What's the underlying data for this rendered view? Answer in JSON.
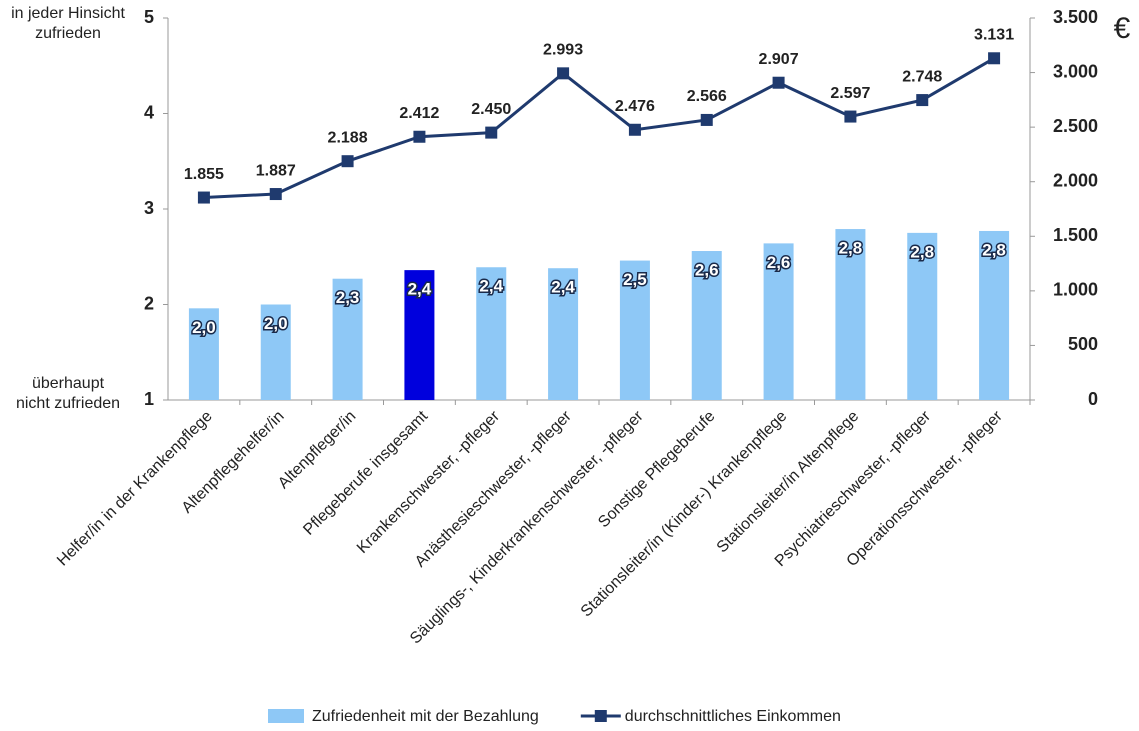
{
  "chart_data": {
    "type": "combo",
    "y_axis_top_label": [
      "in jeder Hinsicht",
      "zufrieden"
    ],
    "y_axis_bottom_label": [
      "überhaupt",
      "nicht zufrieden"
    ],
    "y2_unit": "€",
    "categories": [
      "Helfer/in in der Krankenpflege",
      "Altenpflegehelfer/in",
      "Altenpfleger/in",
      "Pflegeberufe insgesamt",
      "Krankenschwester, -pfleger",
      "Anästhesieschwester, -pfleger",
      "Säuglings-, Kinderkrankenschwester, -pfleger",
      "Sonstige Pflegeberufe",
      "Stationsleiter/in (Kinder-) Krankenpflege",
      "Stationsleiter/in Altenpflege",
      "Psychiatrieschwester, -pfleger",
      "Operationsschwester, -pfleger"
    ],
    "series": [
      {
        "name": "Zufriedenheit mit der Bezahlung",
        "type": "bar",
        "color": "#8ec8f6",
        "colors": [
          "#8ec8f6",
          "#8ec8f6",
          "#8ec8f6",
          "#0000dd",
          "#8ec8f6",
          "#8ec8f6",
          "#8ec8f6",
          "#8ec8f6",
          "#8ec8f6",
          "#8ec8f6",
          "#8ec8f6",
          "#8ec8f6"
        ],
        "values": [
          1.96,
          2.0,
          2.27,
          2.36,
          2.39,
          2.38,
          2.46,
          2.56,
          2.64,
          2.79,
          2.75,
          2.77
        ],
        "value_labels": [
          "2,0",
          "2,0",
          "2,3",
          "2,4",
          "2,4",
          "2,4",
          "2,5",
          "2,6",
          "2,6",
          "2,8",
          "2,8",
          "2,8"
        ]
      },
      {
        "name": "durchschnittliches Einkommen",
        "type": "line",
        "axis": "y2",
        "color": "#1f3a6e",
        "values": [
          1855,
          1887,
          2188,
          2412,
          2450,
          2993,
          2476,
          2566,
          2907,
          2597,
          2748,
          3131
        ],
        "value_labels": [
          "1.855",
          "1.887",
          "2.188",
          "2.412",
          "2.450",
          "2.993",
          "2.476",
          "2.566",
          "2.907",
          "2.597",
          "2.748",
          "3.131"
        ]
      }
    ],
    "ylim": [
      1,
      5
    ],
    "yticks": [
      1,
      2,
      3,
      4,
      5
    ],
    "y2lim": [
      0,
      3500
    ],
    "y2ticks": [
      0,
      500,
      {
        "value": 1000,
        "label": "1.000"
      },
      {
        "value": 1500,
        "label": "1.500"
      },
      {
        "value": 2000,
        "label": "2.000"
      },
      {
        "value": 2500,
        "label": "2.500"
      },
      {
        "value": 3000,
        "label": "3.000"
      },
      {
        "value": 3500,
        "label": "3.500"
      }
    ],
    "grid": false,
    "legend": "bottom"
  }
}
